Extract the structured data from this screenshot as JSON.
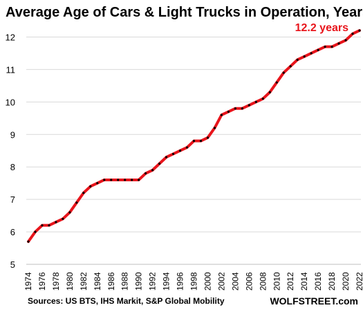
{
  "chart_data": {
    "type": "line",
    "title": "Average Age of Cars & Light Trucks in Operation, Years",
    "xlabel": "",
    "ylabel": "",
    "ylim": [
      5,
      12.5
    ],
    "yticks": [
      "5",
      "6",
      "7",
      "8",
      "9",
      "10",
      "11",
      "12"
    ],
    "xticks": [
      "1974",
      "1976",
      "1978",
      "1980",
      "1982",
      "1984",
      "1986",
      "1988",
      "1990",
      "1992",
      "1994",
      "1996",
      "1998",
      "2000",
      "2002",
      "2004",
      "2006",
      "2008",
      "2010",
      "2012",
      "2014",
      "2016",
      "2018",
      "2020",
      "2022"
    ],
    "grid": "horizontal",
    "series": [
      {
        "color": "#e8141b",
        "marker_color": "#000000",
        "x": [
          1974,
          1975,
          1976,
          1977,
          1978,
          1979,
          1980,
          1981,
          1982,
          1983,
          1984,
          1985,
          1986,
          1987,
          1988,
          1989,
          1990,
          1991,
          1992,
          1993,
          1994,
          1995,
          1996,
          1997,
          1998,
          1999,
          2000,
          2001,
          2002,
          2003,
          2004,
          2005,
          2006,
          2007,
          2008,
          2009,
          2010,
          2011,
          2012,
          2013,
          2014,
          2015,
          2016,
          2017,
          2018,
          2019,
          2020,
          2021,
          2022
        ],
        "values": [
          5.7,
          6.0,
          6.2,
          6.2,
          6.3,
          6.4,
          6.6,
          6.9,
          7.2,
          7.4,
          7.5,
          7.6,
          7.6,
          7.6,
          7.6,
          7.6,
          7.6,
          7.8,
          7.9,
          8.1,
          8.3,
          8.4,
          8.5,
          8.6,
          8.8,
          8.8,
          8.9,
          9.2,
          9.6,
          9.7,
          9.8,
          9.8,
          9.9,
          10.0,
          10.1,
          10.3,
          10.6,
          10.9,
          11.1,
          11.3,
          11.4,
          11.5,
          11.6,
          11.7,
          11.7,
          11.8,
          11.9,
          12.1,
          12.2
        ]
      }
    ],
    "annotation": "12.2 years",
    "annotation_color": "#e8141b"
  },
  "footer": {
    "source": "Sources: US BTS, IHS Markit, S&P Global Mobility",
    "brand": "WOLFSTREET.com"
  }
}
